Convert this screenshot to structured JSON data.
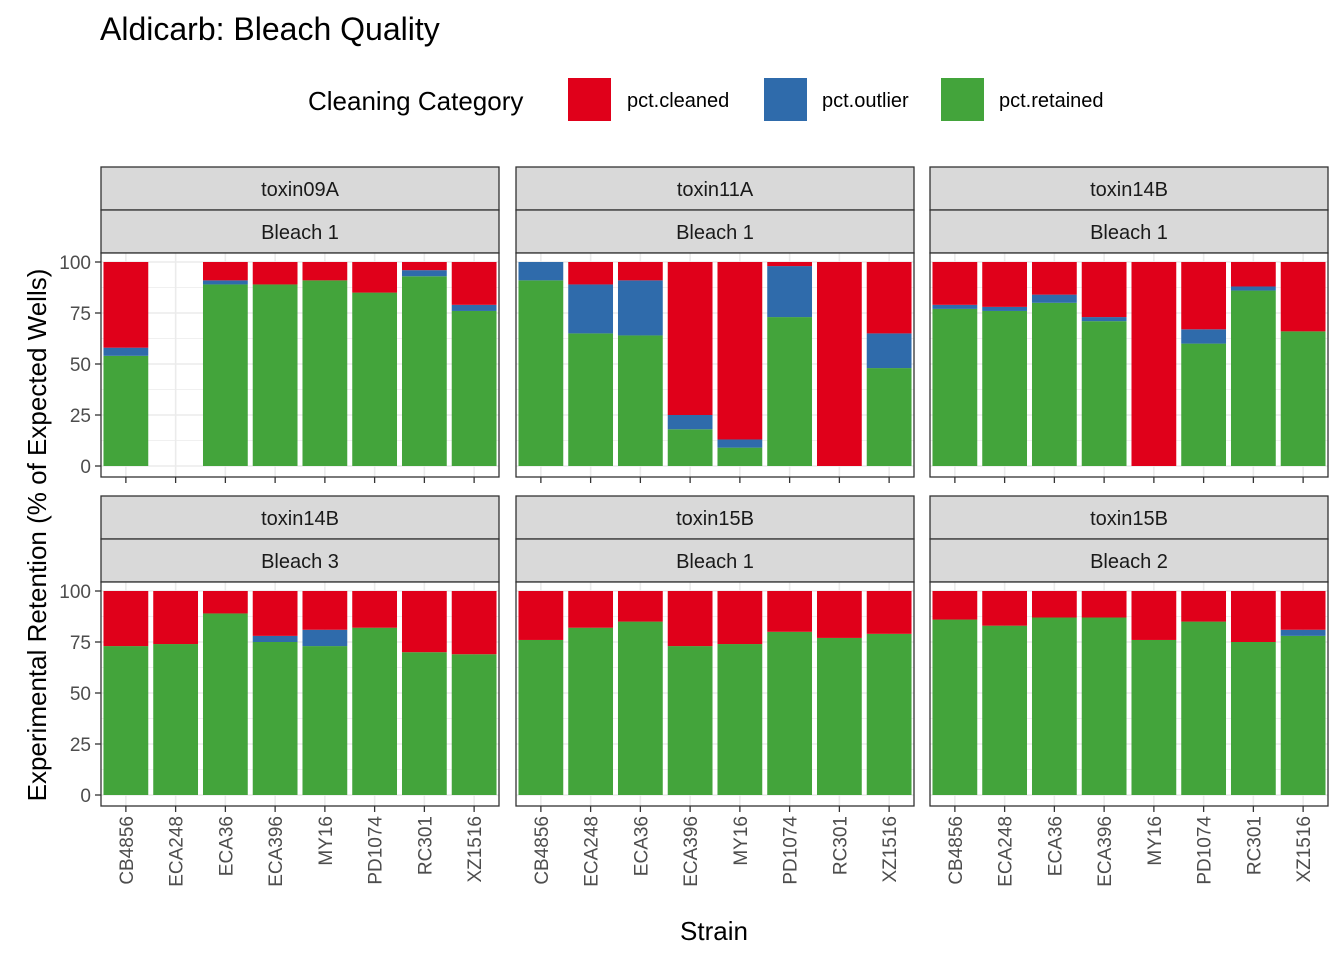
{
  "colors": {
    "pct.cleaned": "#E0001A",
    "pct.outlier": "#2F6BAB",
    "pct.retained": "#43A43B",
    "strip_fill": "#D9D9D9",
    "grid": "#EBEBEB",
    "panel_border": "#333333"
  },
  "chart_data": {
    "type": "bar",
    "stacked": true,
    "title": "Aldicarb: Bleach Quality",
    "xlabel": "Strain",
    "ylabel": "Experimental Retention (% of Expected Wells)",
    "ylim": [
      0,
      100
    ],
    "yticks": [
      0,
      25,
      50,
      75,
      100
    ],
    "grid": true,
    "legend": {
      "title": "Cleaning Category",
      "position": "top",
      "entries": [
        "pct.cleaned",
        "pct.outlier",
        "pct.retained"
      ]
    },
    "categories": [
      "CB4856",
      "ECA248",
      "ECA36",
      "ECA396",
      "MY16",
      "PD1074",
      "RC301",
      "XZ1516"
    ],
    "stack_order_bottom_to_top": [
      "pct.retained",
      "pct.outlier",
      "pct.cleaned"
    ],
    "panels": [
      {
        "strip_top": "toxin09A",
        "strip_bottom": "Bleach 1",
        "bars": [
          {
            "strain": "CB4856",
            "pct.retained": 54,
            "pct.outlier": 4,
            "pct.cleaned": 42
          },
          {
            "strain": "ECA248",
            "pct.retained": null,
            "pct.outlier": null,
            "pct.cleaned": null
          },
          {
            "strain": "ECA36",
            "pct.retained": 89,
            "pct.outlier": 2,
            "pct.cleaned": 9
          },
          {
            "strain": "ECA396",
            "pct.retained": 89,
            "pct.outlier": 0,
            "pct.cleaned": 11
          },
          {
            "strain": "MY16",
            "pct.retained": 91,
            "pct.outlier": 0,
            "pct.cleaned": 9
          },
          {
            "strain": "PD1074",
            "pct.retained": 85,
            "pct.outlier": 0,
            "pct.cleaned": 15
          },
          {
            "strain": "RC301",
            "pct.retained": 93,
            "pct.outlier": 3,
            "pct.cleaned": 4
          },
          {
            "strain": "XZ1516",
            "pct.retained": 76,
            "pct.outlier": 3,
            "pct.cleaned": 21
          }
        ]
      },
      {
        "strip_top": "toxin11A",
        "strip_bottom": "Bleach 1",
        "bars": [
          {
            "strain": "CB4856",
            "pct.retained": 91,
            "pct.outlier": 9,
            "pct.cleaned": 0
          },
          {
            "strain": "ECA248",
            "pct.retained": 65,
            "pct.outlier": 24,
            "pct.cleaned": 11
          },
          {
            "strain": "ECA36",
            "pct.retained": 64,
            "pct.outlier": 27,
            "pct.cleaned": 9
          },
          {
            "strain": "ECA396",
            "pct.retained": 18,
            "pct.outlier": 7,
            "pct.cleaned": 75
          },
          {
            "strain": "MY16",
            "pct.retained": 9,
            "pct.outlier": 4,
            "pct.cleaned": 87
          },
          {
            "strain": "PD1074",
            "pct.retained": 73,
            "pct.outlier": 25,
            "pct.cleaned": 2
          },
          {
            "strain": "RC301",
            "pct.retained": 0,
            "pct.outlier": 0,
            "pct.cleaned": 100
          },
          {
            "strain": "XZ1516",
            "pct.retained": 48,
            "pct.outlier": 17,
            "pct.cleaned": 35
          }
        ]
      },
      {
        "strip_top": "toxin14B",
        "strip_bottom": "Bleach 1",
        "bars": [
          {
            "strain": "CB4856",
            "pct.retained": 77,
            "pct.outlier": 2,
            "pct.cleaned": 21
          },
          {
            "strain": "ECA248",
            "pct.retained": 76,
            "pct.outlier": 2,
            "pct.cleaned": 22
          },
          {
            "strain": "ECA36",
            "pct.retained": 80,
            "pct.outlier": 4,
            "pct.cleaned": 16
          },
          {
            "strain": "ECA396",
            "pct.retained": 71,
            "pct.outlier": 2,
            "pct.cleaned": 27
          },
          {
            "strain": "MY16",
            "pct.retained": 0,
            "pct.outlier": 0,
            "pct.cleaned": 100
          },
          {
            "strain": "PD1074",
            "pct.retained": 60,
            "pct.outlier": 7,
            "pct.cleaned": 33
          },
          {
            "strain": "RC301",
            "pct.retained": 86,
            "pct.outlier": 2,
            "pct.cleaned": 12
          },
          {
            "strain": "XZ1516",
            "pct.retained": 66,
            "pct.outlier": 0,
            "pct.cleaned": 34
          }
        ]
      },
      {
        "strip_top": "toxin14B",
        "strip_bottom": "Bleach 3",
        "bars": [
          {
            "strain": "CB4856",
            "pct.retained": 73,
            "pct.outlier": 0,
            "pct.cleaned": 27
          },
          {
            "strain": "ECA248",
            "pct.retained": 74,
            "pct.outlier": 0,
            "pct.cleaned": 26
          },
          {
            "strain": "ECA36",
            "pct.retained": 89,
            "pct.outlier": 0,
            "pct.cleaned": 11
          },
          {
            "strain": "ECA396",
            "pct.retained": 75,
            "pct.outlier": 3,
            "pct.cleaned": 22
          },
          {
            "strain": "MY16",
            "pct.retained": 73,
            "pct.outlier": 8,
            "pct.cleaned": 19
          },
          {
            "strain": "PD1074",
            "pct.retained": 82,
            "pct.outlier": 0,
            "pct.cleaned": 18
          },
          {
            "strain": "RC301",
            "pct.retained": 70,
            "pct.outlier": 0,
            "pct.cleaned": 30
          },
          {
            "strain": "XZ1516",
            "pct.retained": 69,
            "pct.outlier": 0,
            "pct.cleaned": 31
          }
        ]
      },
      {
        "strip_top": "toxin15B",
        "strip_bottom": "Bleach 1",
        "bars": [
          {
            "strain": "CB4856",
            "pct.retained": 76,
            "pct.outlier": 0,
            "pct.cleaned": 24
          },
          {
            "strain": "ECA248",
            "pct.retained": 82,
            "pct.outlier": 0,
            "pct.cleaned": 18
          },
          {
            "strain": "ECA36",
            "pct.retained": 85,
            "pct.outlier": 0,
            "pct.cleaned": 15
          },
          {
            "strain": "ECA396",
            "pct.retained": 73,
            "pct.outlier": 0,
            "pct.cleaned": 27
          },
          {
            "strain": "MY16",
            "pct.retained": 74,
            "pct.outlier": 0,
            "pct.cleaned": 26
          },
          {
            "strain": "PD1074",
            "pct.retained": 80,
            "pct.outlier": 0,
            "pct.cleaned": 20
          },
          {
            "strain": "RC301",
            "pct.retained": 77,
            "pct.outlier": 0,
            "pct.cleaned": 23
          },
          {
            "strain": "XZ1516",
            "pct.retained": 79,
            "pct.outlier": 0,
            "pct.cleaned": 21
          }
        ]
      },
      {
        "strip_top": "toxin15B",
        "strip_bottom": "Bleach 2",
        "bars": [
          {
            "strain": "CB4856",
            "pct.retained": 86,
            "pct.outlier": 0,
            "pct.cleaned": 14
          },
          {
            "strain": "ECA248",
            "pct.retained": 83,
            "pct.outlier": 0,
            "pct.cleaned": 17
          },
          {
            "strain": "ECA36",
            "pct.retained": 87,
            "pct.outlier": 0,
            "pct.cleaned": 13
          },
          {
            "strain": "ECA396",
            "pct.retained": 87,
            "pct.outlier": 0,
            "pct.cleaned": 13
          },
          {
            "strain": "MY16",
            "pct.retained": 76,
            "pct.outlier": 0,
            "pct.cleaned": 24
          },
          {
            "strain": "PD1074",
            "pct.retained": 85,
            "pct.outlier": 0,
            "pct.cleaned": 15
          },
          {
            "strain": "RC301",
            "pct.retained": 75,
            "pct.outlier": 0,
            "pct.cleaned": 25
          },
          {
            "strain": "XZ1516",
            "pct.retained": 78,
            "pct.outlier": 3,
            "pct.cleaned": 19
          }
        ]
      }
    ]
  }
}
